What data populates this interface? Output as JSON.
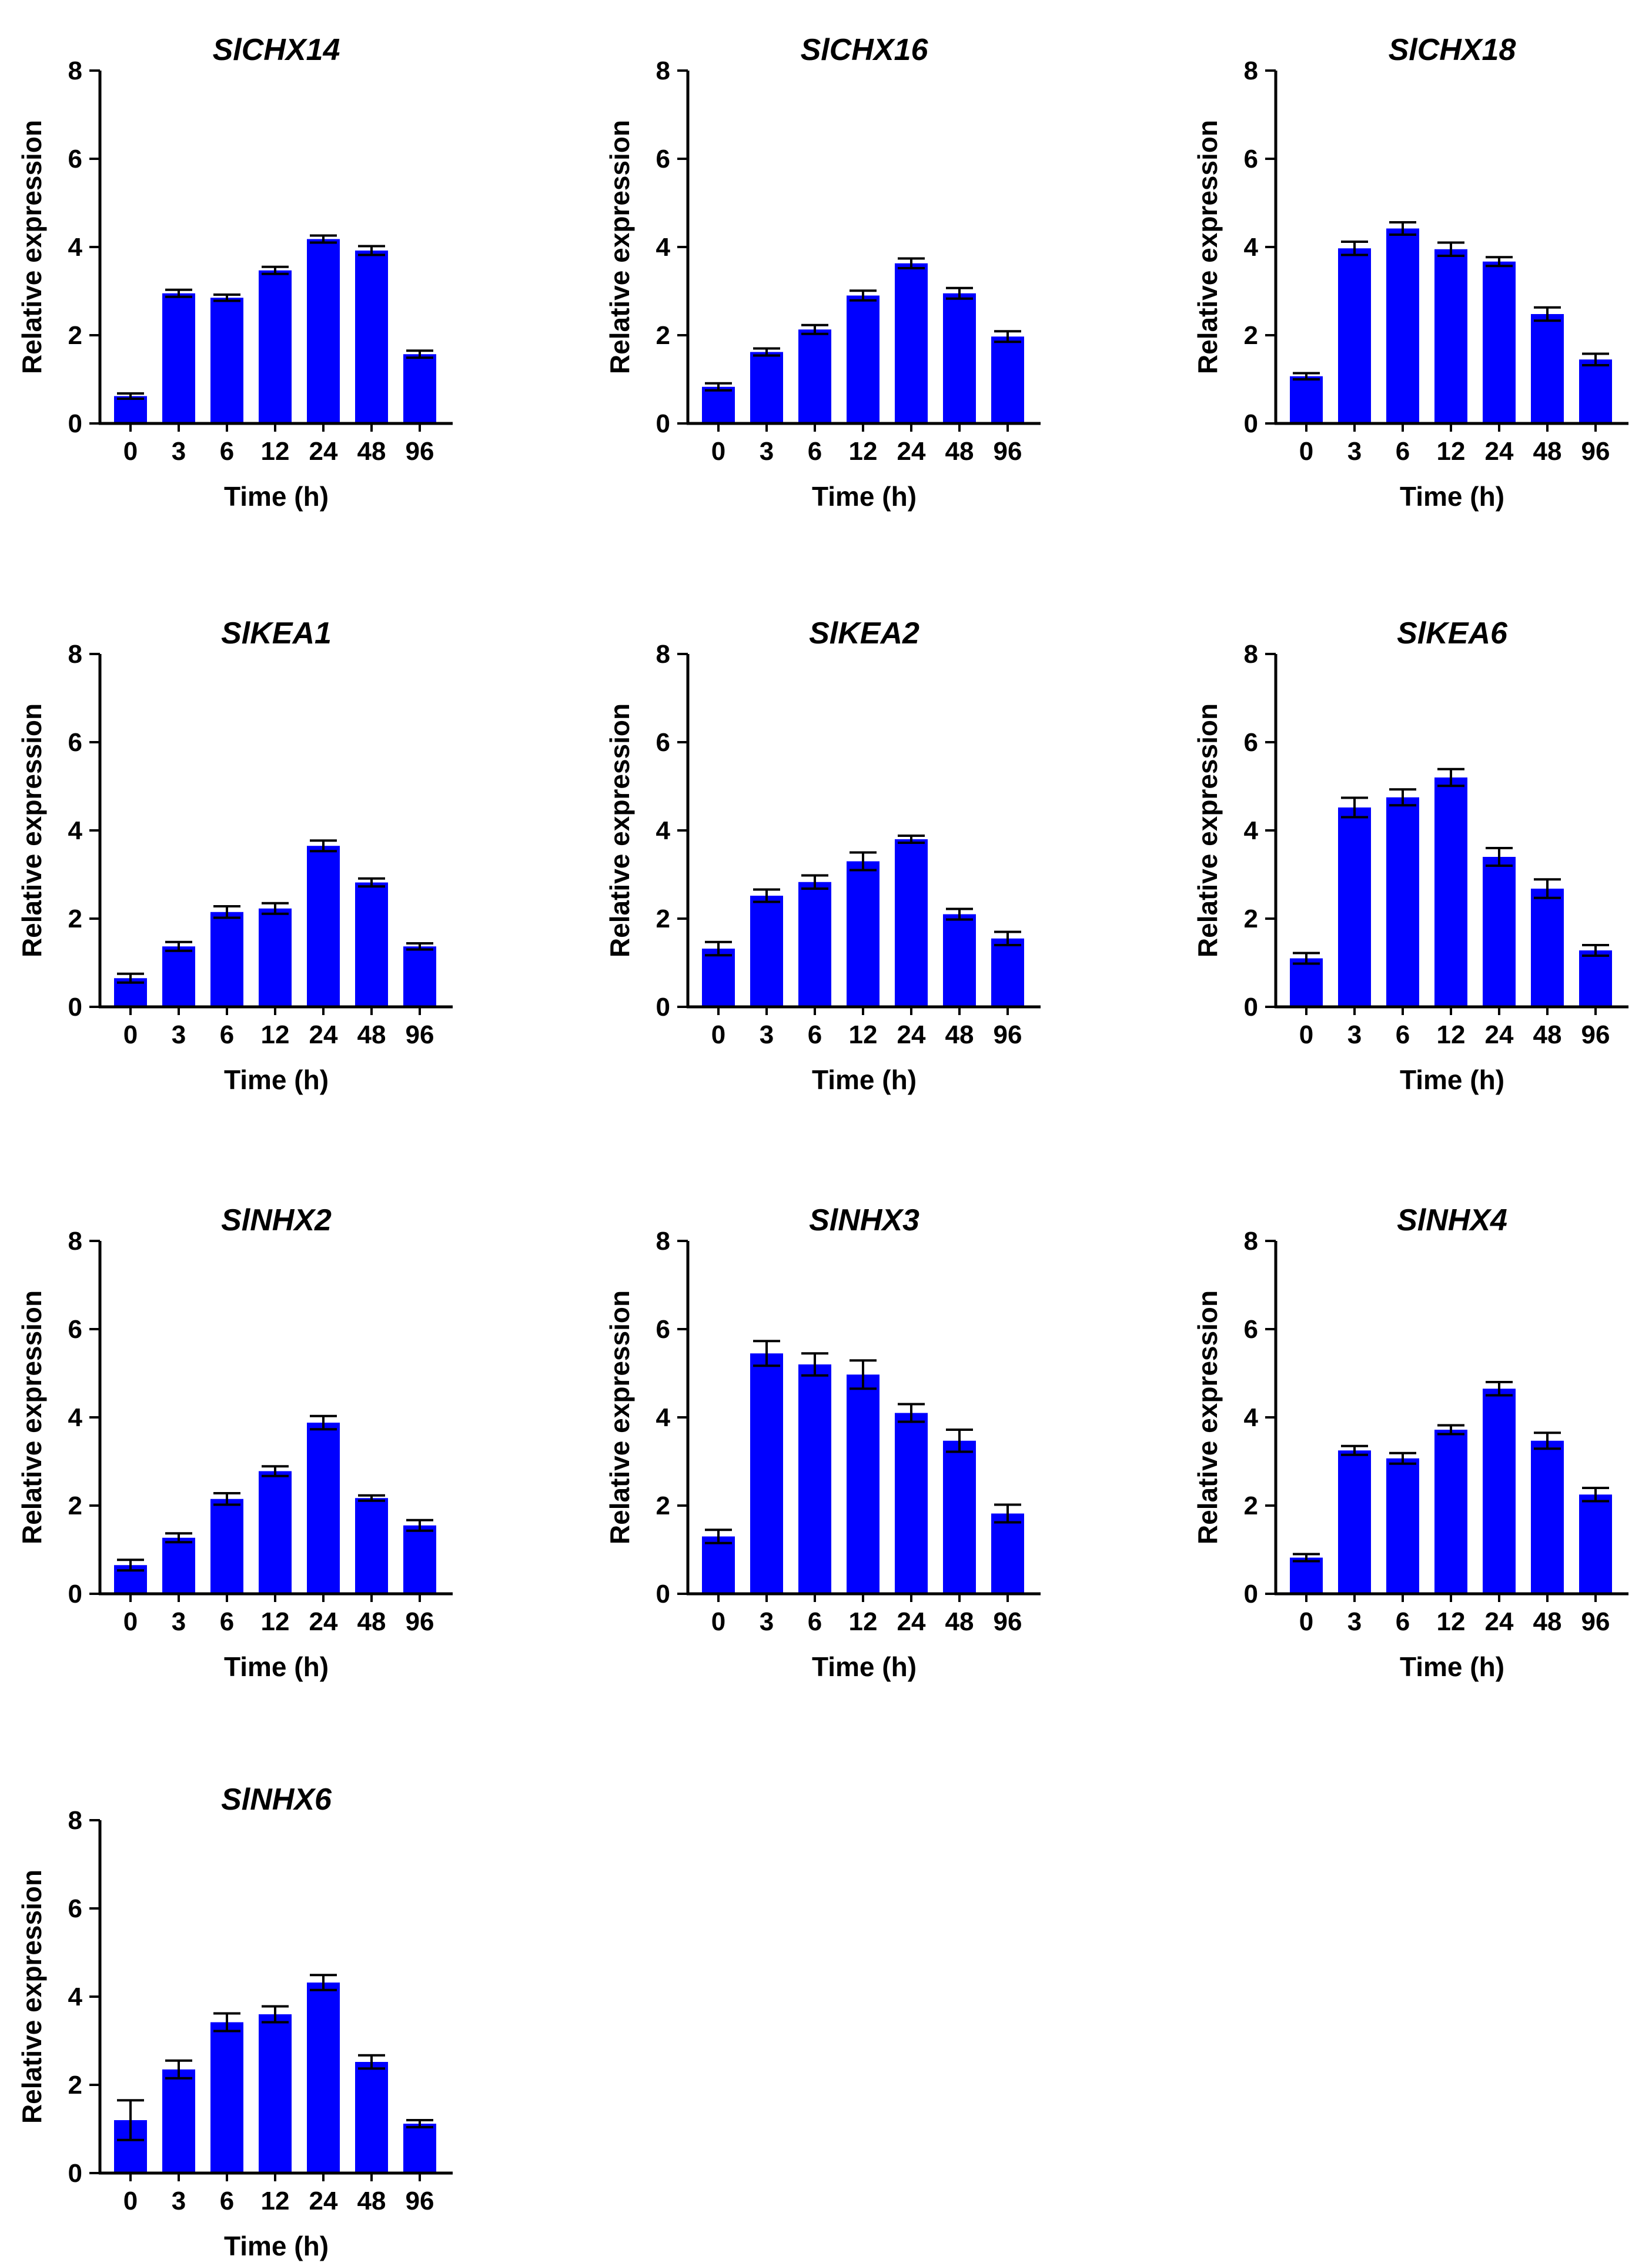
{
  "figure": {
    "bar_color": "#0000ff",
    "axis_color": "#000000"
  },
  "chart_data": [
    {
      "type": "bar",
      "title": "SlCHX14",
      "xlabel": "Time (h)",
      "ylabel": "Relative expression",
      "categories": [
        "0",
        "3",
        "6",
        "12",
        "24",
        "48",
        "96"
      ],
      "ylim": [
        0,
        8
      ],
      "yticks": [
        "0",
        "2",
        "4",
        "6",
        "8"
      ],
      "values": [
        0.62,
        2.95,
        2.85,
        3.47,
        4.18,
        3.92,
        1.57
      ],
      "errors": [
        0.06,
        0.08,
        0.07,
        0.08,
        0.08,
        0.1,
        0.08
      ]
    },
    {
      "type": "bar",
      "title": "SlCHX16",
      "xlabel": "Time (h)",
      "ylabel": "Relative expression",
      "categories": [
        "0",
        "3",
        "6",
        "12",
        "24",
        "48",
        "96"
      ],
      "ylim": [
        0,
        8
      ],
      "yticks": [
        "0",
        "2",
        "4",
        "6",
        "8"
      ],
      "values": [
        0.83,
        1.62,
        2.13,
        2.9,
        3.63,
        2.95,
        1.97
      ],
      "errors": [
        0.08,
        0.08,
        0.1,
        0.11,
        0.11,
        0.12,
        0.12
      ]
    },
    {
      "type": "bar",
      "title": "SlCHX18",
      "xlabel": "Time (h)",
      "ylabel": "Relative expression",
      "categories": [
        "0",
        "3",
        "6",
        "12",
        "24",
        "48",
        "96"
      ],
      "ylim": [
        0,
        8
      ],
      "yticks": [
        "0",
        "2",
        "4",
        "6",
        "8"
      ],
      "values": [
        1.07,
        3.97,
        4.42,
        3.95,
        3.67,
        2.48,
        1.45
      ],
      "errors": [
        0.07,
        0.15,
        0.14,
        0.15,
        0.1,
        0.15,
        0.13
      ]
    },
    {
      "type": "bar",
      "title": "SlKEA1",
      "xlabel": "Time (h)",
      "ylabel": "Relative expression",
      "categories": [
        "0",
        "3",
        "6",
        "12",
        "24",
        "48",
        "96"
      ],
      "ylim": [
        0,
        8
      ],
      "yticks": [
        "0",
        "2",
        "4",
        "6",
        "8"
      ],
      "values": [
        0.65,
        1.37,
        2.15,
        2.23,
        3.65,
        2.82,
        1.37
      ],
      "errors": [
        0.1,
        0.1,
        0.13,
        0.12,
        0.12,
        0.09,
        0.07
      ]
    },
    {
      "type": "bar",
      "title": "SlKEA2",
      "xlabel": "Time (h)",
      "ylabel": "Relative expression",
      "categories": [
        "0",
        "3",
        "6",
        "12",
        "24",
        "48",
        "96"
      ],
      "ylim": [
        0,
        8
      ],
      "yticks": [
        "0",
        "2",
        "4",
        "6",
        "8"
      ],
      "values": [
        1.32,
        2.52,
        2.83,
        3.3,
        3.8,
        2.1,
        1.55
      ],
      "errors": [
        0.15,
        0.14,
        0.15,
        0.2,
        0.08,
        0.12,
        0.15
      ]
    },
    {
      "type": "bar",
      "title": "SlKEA6",
      "xlabel": "Time (h)",
      "ylabel": "Relative expression",
      "categories": [
        "0",
        "3",
        "6",
        "12",
        "24",
        "48",
        "96"
      ],
      "ylim": [
        0,
        8
      ],
      "yticks": [
        "0",
        "2",
        "4",
        "6",
        "8"
      ],
      "values": [
        1.1,
        4.52,
        4.75,
        5.2,
        3.4,
        2.68,
        1.28
      ],
      "errors": [
        0.12,
        0.22,
        0.18,
        0.19,
        0.2,
        0.21,
        0.12
      ]
    },
    {
      "type": "bar",
      "title": "SlNHX2",
      "xlabel": "Time (h)",
      "ylabel": "Relative expression",
      "categories": [
        "0",
        "3",
        "6",
        "12",
        "24",
        "48",
        "96"
      ],
      "ylim": [
        0,
        8
      ],
      "yticks": [
        "0",
        "2",
        "4",
        "6",
        "8"
      ],
      "values": [
        0.65,
        1.27,
        2.15,
        2.78,
        3.88,
        2.17,
        1.55
      ],
      "errors": [
        0.12,
        0.1,
        0.13,
        0.11,
        0.15,
        0.06,
        0.12
      ]
    },
    {
      "type": "bar",
      "title": "SlNHX3",
      "xlabel": "Time (h)",
      "ylabel": "Relative expression",
      "categories": [
        "0",
        "3",
        "6",
        "12",
        "24",
        "48",
        "96"
      ],
      "ylim": [
        0,
        8
      ],
      "yticks": [
        "0",
        "2",
        "4",
        "6",
        "8"
      ],
      "values": [
        1.3,
        5.45,
        5.2,
        4.97,
        4.1,
        3.47,
        1.82
      ],
      "errors": [
        0.15,
        0.28,
        0.25,
        0.32,
        0.2,
        0.25,
        0.2
      ]
    },
    {
      "type": "bar",
      "title": "SlNHX4",
      "xlabel": "Time (h)",
      "ylabel": "Relative expression",
      "categories": [
        "0",
        "3",
        "6",
        "12",
        "24",
        "48",
        "96"
      ],
      "ylim": [
        0,
        8
      ],
      "yticks": [
        "0",
        "2",
        "4",
        "6",
        "8"
      ],
      "values": [
        0.82,
        3.25,
        3.07,
        3.72,
        4.65,
        3.47,
        2.25
      ],
      "errors": [
        0.08,
        0.1,
        0.12,
        0.1,
        0.15,
        0.18,
        0.15
      ]
    },
    {
      "type": "bar",
      "title": "SlNHX6",
      "xlabel": "Time (h)",
      "ylabel": "Relative expression",
      "categories": [
        "0",
        "3",
        "6",
        "12",
        "24",
        "48",
        "96"
      ],
      "ylim": [
        0,
        8
      ],
      "yticks": [
        "0",
        "2",
        "4",
        "6",
        "8"
      ],
      "values": [
        1.2,
        2.35,
        3.42,
        3.6,
        4.32,
        2.52,
        1.12
      ],
      "errors": [
        0.45,
        0.2,
        0.2,
        0.18,
        0.17,
        0.15,
        0.08
      ]
    }
  ]
}
